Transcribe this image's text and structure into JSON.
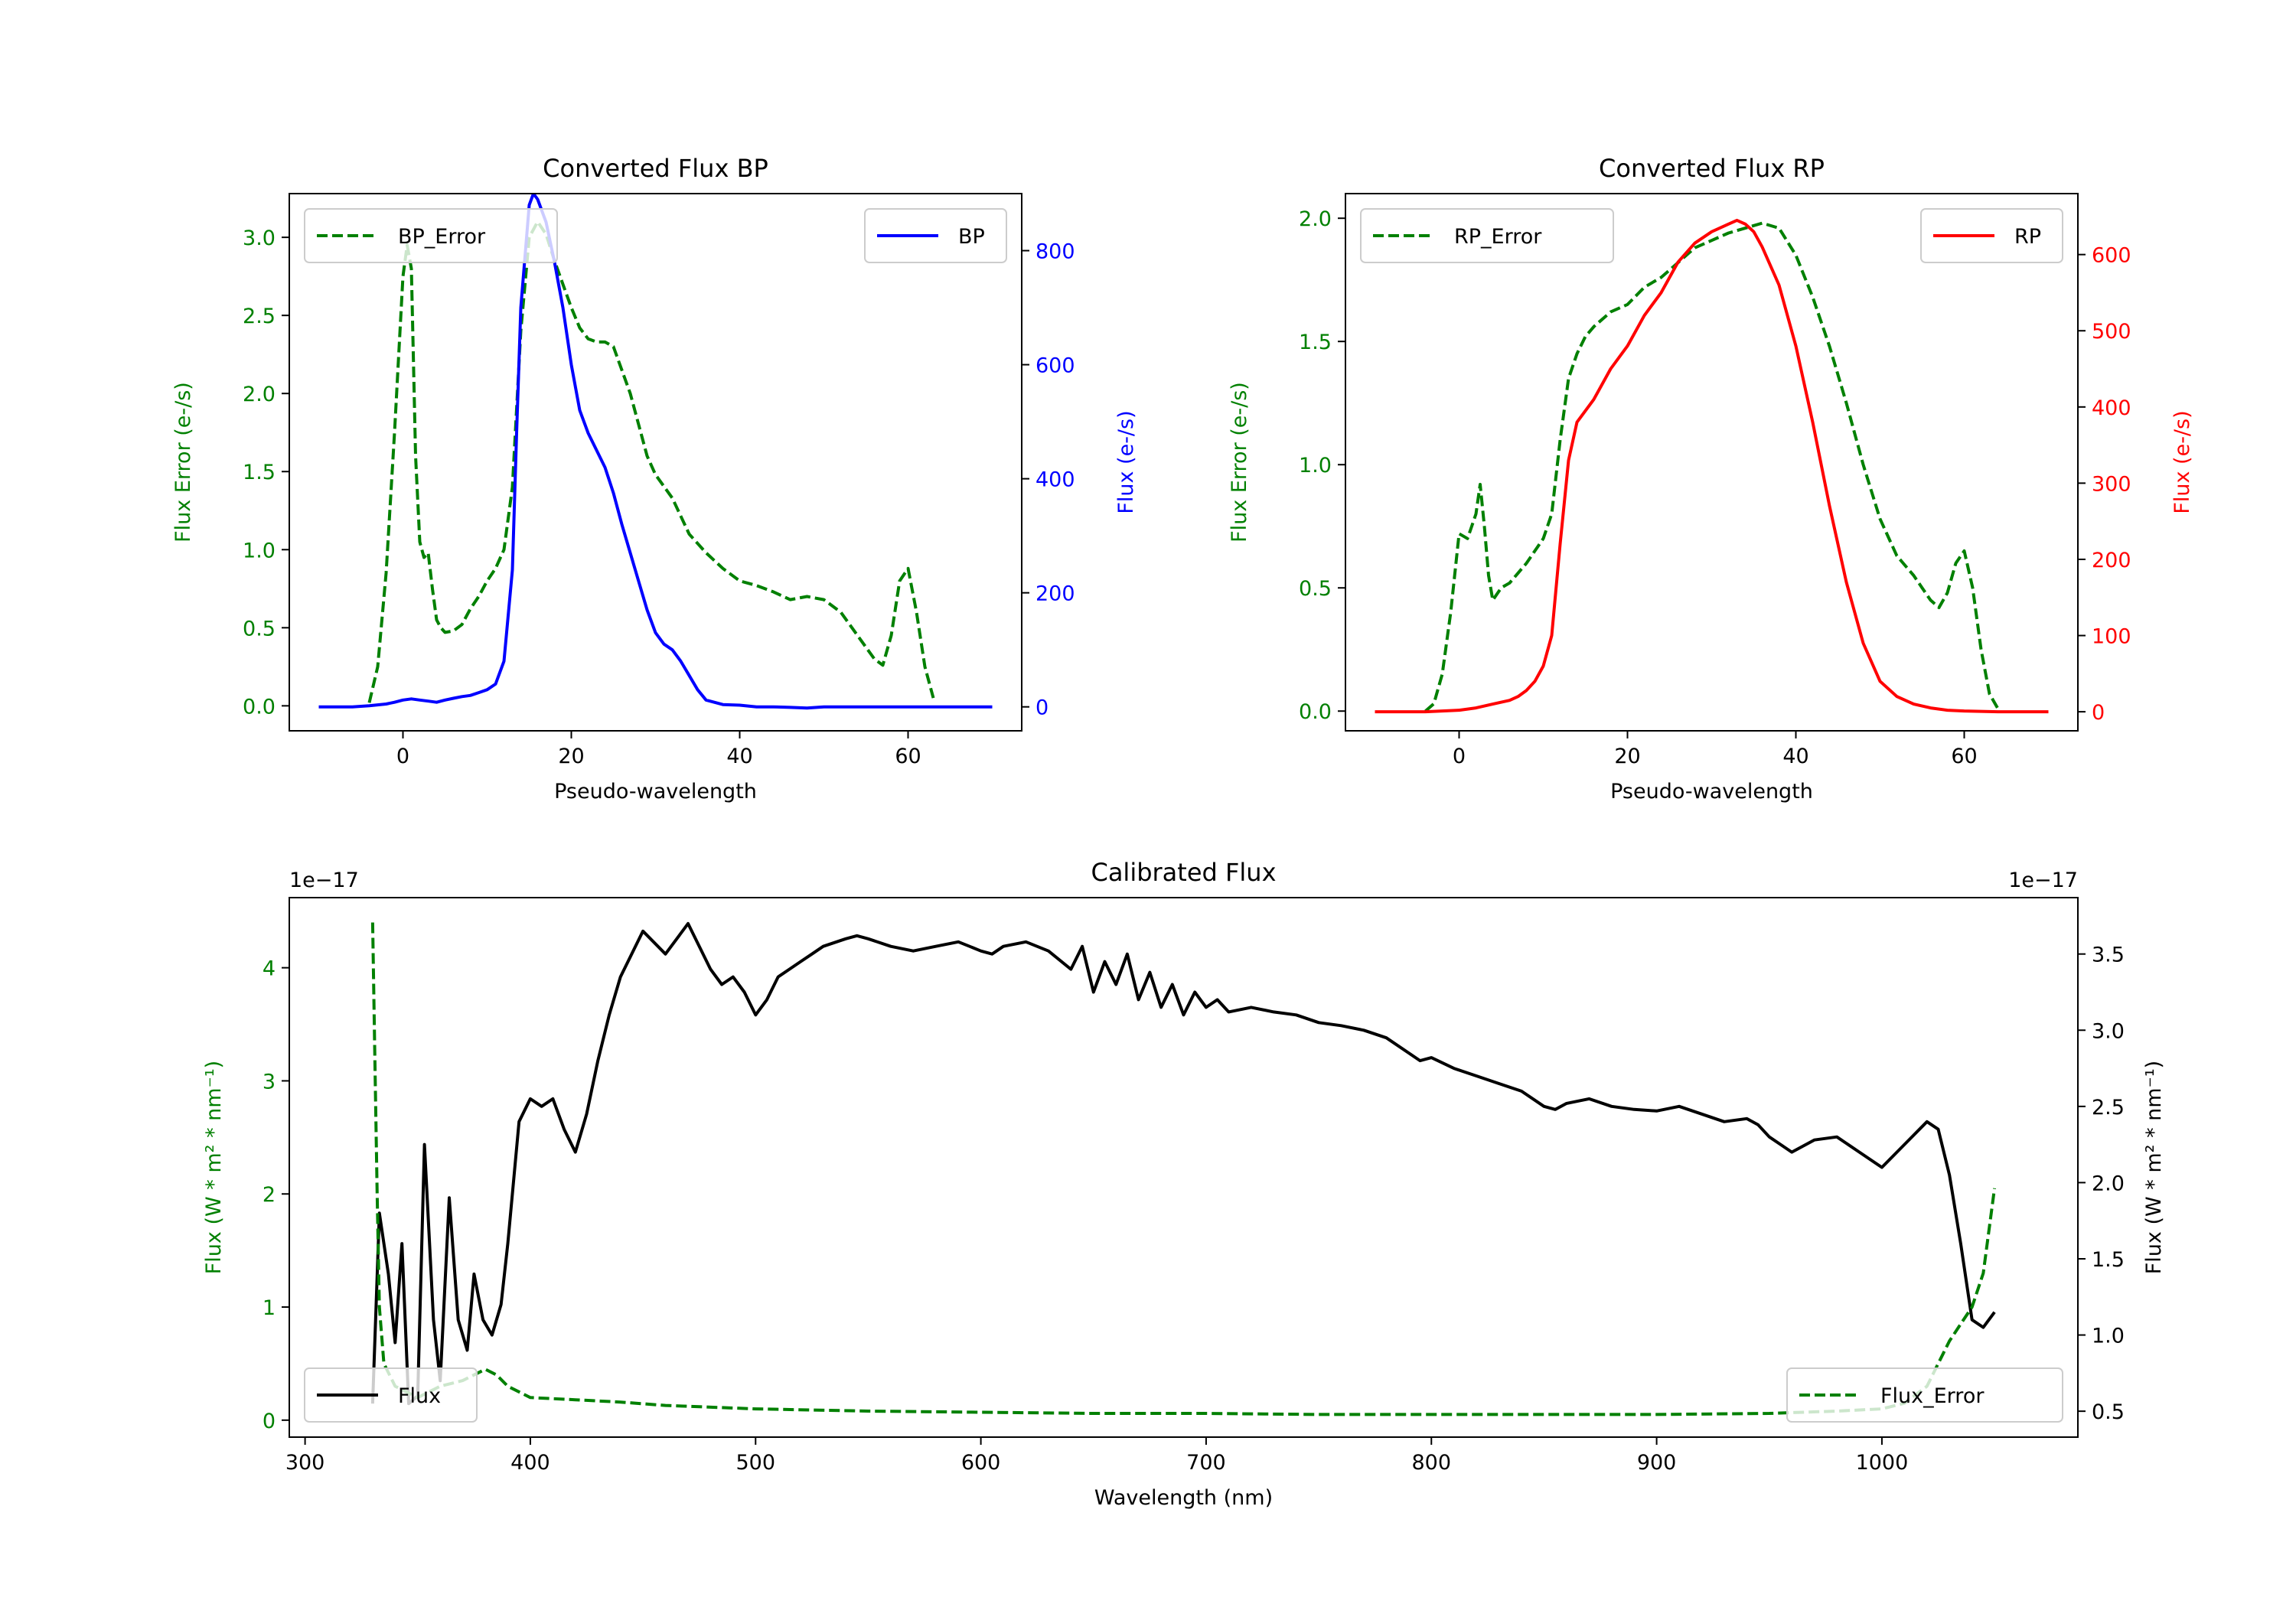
{
  "colors": {
    "green": "#008000",
    "blue": "#0000ff",
    "red": "#ff0000",
    "black": "#000000"
  },
  "chart_data": [
    {
      "id": "bp",
      "type": "line",
      "title": "Converted Flux BP",
      "xlabel": "Pseudo-wavelength",
      "ylabel_left": "Flux Error (e-/s)",
      "ylabel_right": "Flux (e-/s)",
      "xlim": [
        -13.5,
        73.5
      ],
      "ylim_left": [
        -0.16,
        3.28
      ],
      "ylim_right": [
        -42,
        900
      ],
      "xticks": [
        0,
        20,
        40,
        60
      ],
      "xtick_labels": [
        "0",
        "20",
        "40",
        "60"
      ],
      "yticks_left": [
        0.0,
        0.5,
        1.0,
        1.5,
        2.0,
        2.5,
        3.0
      ],
      "ytick_labels_left": [
        "0.0",
        "0.5",
        "1.0",
        "1.5",
        "2.0",
        "2.5",
        "3.0"
      ],
      "yticks_right": [
        0,
        200,
        400,
        600,
        800
      ],
      "ytick_labels_right": [
        "0",
        "200",
        "400",
        "600",
        "800"
      ],
      "legend_left": "BP_Error",
      "legend_right": "BP",
      "series": [
        {
          "name": "BP_Error",
          "axis": "left",
          "color": "green",
          "dashed": true,
          "x": [
            -4,
            -3,
            -2,
            -1,
            0,
            0.5,
            1,
            1.5,
            2,
            2.5,
            3,
            3.5,
            4,
            4.5,
            5,
            6,
            7,
            8,
            9,
            10,
            11,
            12,
            13,
            14,
            15,
            16,
            17,
            18,
            19,
            20,
            21,
            22,
            23,
            24,
            25,
            26,
            27,
            28,
            29,
            30,
            32,
            34,
            36,
            38,
            40,
            42,
            44,
            46,
            48,
            50,
            52,
            54,
            56,
            57,
            58,
            59,
            60,
            61,
            62,
            63
          ],
          "y": [
            0.02,
            0.25,
            0.85,
            1.75,
            2.75,
            2.95,
            2.8,
            1.6,
            1.05,
            0.95,
            0.98,
            0.75,
            0.55,
            0.5,
            0.47,
            0.48,
            0.52,
            0.62,
            0.7,
            0.8,
            0.88,
            1.0,
            1.4,
            2.4,
            3.0,
            3.1,
            3.02,
            2.85,
            2.7,
            2.55,
            2.42,
            2.35,
            2.33,
            2.33,
            2.3,
            2.15,
            2.0,
            1.8,
            1.6,
            1.48,
            1.33,
            1.1,
            0.98,
            0.88,
            0.8,
            0.77,
            0.73,
            0.68,
            0.7,
            0.68,
            0.6,
            0.45,
            0.3,
            0.26,
            0.45,
            0.8,
            0.88,
            0.6,
            0.25,
            0.05
          ]
        },
        {
          "name": "BP",
          "axis": "right",
          "color": "blue",
          "dashed": false,
          "x": [
            -10,
            -6,
            -4,
            -2,
            -1,
            0,
            1,
            2,
            3,
            4,
            5,
            6,
            7,
            8,
            9,
            10,
            11,
            12,
            13,
            13.5,
            14,
            15,
            15.5,
            16,
            17,
            18,
            19,
            20,
            21,
            22,
            23,
            24,
            25,
            26,
            27,
            28,
            29,
            30,
            31,
            32,
            33,
            34,
            35,
            36,
            38,
            40,
            42,
            44,
            46,
            48,
            50,
            52,
            54,
            56,
            58,
            60,
            62,
            64,
            66,
            68,
            70
          ],
          "y": [
            0,
            0,
            2,
            5,
            8,
            12,
            14,
            12,
            10,
            8,
            12,
            15,
            18,
            20,
            25,
            30,
            40,
            80,
            240,
            480,
            700,
            880,
            900,
            890,
            850,
            780,
            700,
            600,
            520,
            480,
            450,
            420,
            375,
            320,
            270,
            220,
            170,
            130,
            110,
            100,
            80,
            55,
            30,
            12,
            4,
            3,
            0,
            0,
            -1,
            -2,
            0,
            0,
            0,
            0,
            0,
            0,
            0,
            0,
            0,
            0,
            0
          ]
        }
      ]
    },
    {
      "id": "rp",
      "type": "line",
      "title": "Converted Flux RP",
      "xlabel": "Pseudo-wavelength",
      "ylabel_left": "Flux Error (e-/s)",
      "ylabel_right": "Flux (e-/s)",
      "xlim": [
        -13.5,
        73.5
      ],
      "ylim_left": [
        -0.08,
        2.1
      ],
      "ylim_right": [
        -25,
        680
      ],
      "xticks": [
        0,
        20,
        40,
        60
      ],
      "xtick_labels": [
        "0",
        "20",
        "40",
        "60"
      ],
      "yticks_left": [
        0.0,
        0.5,
        1.0,
        1.5,
        2.0
      ],
      "ytick_labels_left": [
        "0.0",
        "0.5",
        "1.0",
        "1.5",
        "2.0"
      ],
      "yticks_right": [
        0,
        100,
        200,
        300,
        400,
        500,
        600
      ],
      "ytick_labels_right": [
        "0",
        "100",
        "200",
        "300",
        "400",
        "500",
        "600"
      ],
      "legend_left": "RP_Error",
      "legend_right": "RP",
      "series": [
        {
          "name": "RP_Error",
          "axis": "left",
          "color": "green",
          "dashed": true,
          "x": [
            -4,
            -3,
            -2,
            -1,
            0,
            1,
            2,
            2.5,
            3,
            3.5,
            4,
            5,
            6,
            7,
            8,
            9,
            10,
            11,
            12,
            13,
            14,
            15,
            16,
            18,
            20,
            22,
            24,
            26,
            28,
            30,
            32,
            34,
            36,
            38,
            40,
            42,
            44,
            46,
            48,
            50,
            52,
            54,
            55,
            56,
            57,
            58,
            59,
            60,
            61,
            62,
            63,
            64
          ],
          "y": [
            0.0,
            0.03,
            0.15,
            0.4,
            0.72,
            0.7,
            0.8,
            0.92,
            0.75,
            0.55,
            0.45,
            0.5,
            0.52,
            0.56,
            0.6,
            0.65,
            0.7,
            0.8,
            1.1,
            1.35,
            1.45,
            1.52,
            1.56,
            1.62,
            1.65,
            1.72,
            1.76,
            1.82,
            1.88,
            1.91,
            1.94,
            1.96,
            1.98,
            1.96,
            1.85,
            1.68,
            1.48,
            1.25,
            1.0,
            0.78,
            0.63,
            0.55,
            0.5,
            0.45,
            0.42,
            0.48,
            0.6,
            0.65,
            0.5,
            0.25,
            0.07,
            0.01
          ]
        },
        {
          "name": "RP",
          "axis": "right",
          "color": "red",
          "dashed": false,
          "x": [
            -10,
            -4,
            -2,
            0,
            2,
            4,
            6,
            7,
            8,
            9,
            10,
            11,
            12,
            13,
            14,
            15,
            16,
            18,
            20,
            22,
            24,
            26,
            28,
            30,
            31,
            32,
            33,
            34,
            35,
            36,
            37,
            38,
            39,
            40,
            42,
            44,
            46,
            48,
            50,
            52,
            54,
            56,
            58,
            60,
            64,
            70
          ],
          "y": [
            0,
            0,
            1,
            2,
            5,
            10,
            15,
            20,
            28,
            40,
            60,
            100,
            220,
            330,
            380,
            395,
            410,
            450,
            480,
            520,
            550,
            590,
            615,
            630,
            635,
            640,
            645,
            640,
            630,
            610,
            585,
            560,
            520,
            480,
            380,
            270,
            170,
            90,
            40,
            20,
            10,
            5,
            2,
            1,
            0,
            0
          ]
        }
      ]
    },
    {
      "id": "cal",
      "type": "line",
      "title": "Calibrated Flux",
      "xlabel": "Wavelength (nm)",
      "ylabel_left": "Flux (W * m² * nm⁻¹)",
      "ylabel_right": "Flux (W * m² * nm⁻¹)",
      "offset_left": "1e−17",
      "offset_right": "1e−17",
      "xlim": [
        293,
        1087
      ],
      "ylim_left": [
        -0.15,
        4.62
      ],
      "ylim_right": [
        0.33,
        3.87
      ],
      "xticks": [
        300,
        400,
        500,
        600,
        700,
        800,
        900,
        1000
      ],
      "xtick_labels": [
        "300",
        "400",
        "500",
        "600",
        "700",
        "800",
        "900",
        "1000"
      ],
      "yticks_left": [
        0,
        1,
        2,
        3,
        4
      ],
      "ytick_labels_left": [
        "0",
        "1",
        "2",
        "3",
        "4"
      ],
      "yticks_right": [
        0.5,
        1.0,
        1.5,
        2.0,
        2.5,
        3.0,
        3.5
      ],
      "ytick_labels_right": [
        "0.5",
        "1.0",
        "1.5",
        "2.0",
        "2.5",
        "3.0",
        "3.5"
      ],
      "legend_left": "Flux",
      "legend_right": "Flux_Error",
      "series": [
        {
          "name": "Flux",
          "axis": "right",
          "color": "black",
          "dashed": false,
          "x": [
            330,
            333,
            337,
            340,
            343,
            346,
            350,
            353,
            357,
            360,
            364,
            368,
            372,
            375,
            379,
            383,
            387,
            390,
            395,
            400,
            405,
            410,
            415,
            420,
            425,
            430,
            435,
            440,
            450,
            460,
            465,
            470,
            475,
            480,
            485,
            490,
            495,
            500,
            505,
            510,
            515,
            520,
            525,
            530,
            540,
            545,
            550,
            560,
            570,
            580,
            590,
            595,
            600,
            605,
            610,
            620,
            630,
            640,
            645,
            650,
            655,
            660,
            665,
            670,
            675,
            680,
            685,
            690,
            695,
            700,
            705,
            710,
            720,
            730,
            740,
            750,
            760,
            770,
            780,
            790,
            795,
            800,
            810,
            820,
            830,
            840,
            850,
            855,
            860,
            870,
            880,
            890,
            900,
            910,
            920,
            930,
            940,
            945,
            950,
            955,
            960,
            970,
            980,
            990,
            1000,
            1010,
            1020,
            1025,
            1030,
            1035,
            1040,
            1045,
            1050
          ],
          "y": [
            0.55,
            1.8,
            1.4,
            0.95,
            1.6,
            0.55,
            0.6,
            2.25,
            1.1,
            0.7,
            1.9,
            1.1,
            0.9,
            1.4,
            1.1,
            1.0,
            1.2,
            1.6,
            2.4,
            2.55,
            2.5,
            2.55,
            2.35,
            2.2,
            2.45,
            2.8,
            3.1,
            3.35,
            3.65,
            3.5,
            3.6,
            3.7,
            3.55,
            3.4,
            3.3,
            3.35,
            3.25,
            3.1,
            3.2,
            3.35,
            3.4,
            3.45,
            3.5,
            3.55,
            3.6,
            3.62,
            3.6,
            3.55,
            3.52,
            3.55,
            3.58,
            3.55,
            3.52,
            3.5,
            3.55,
            3.58,
            3.52,
            3.4,
            3.55,
            3.25,
            3.45,
            3.3,
            3.5,
            3.2,
            3.38,
            3.15,
            3.3,
            3.1,
            3.25,
            3.15,
            3.2,
            3.12,
            3.15,
            3.12,
            3.1,
            3.05,
            3.03,
            3.0,
            2.95,
            2.85,
            2.8,
            2.82,
            2.75,
            2.7,
            2.65,
            2.6,
            2.5,
            2.48,
            2.52,
            2.55,
            2.5,
            2.48,
            2.47,
            2.5,
            2.45,
            2.4,
            2.42,
            2.38,
            2.3,
            2.25,
            2.2,
            2.28,
            2.3,
            2.2,
            2.1,
            2.25,
            2.4,
            2.35,
            2.05,
            1.6,
            1.1,
            1.05,
            1.15
          ]
        },
        {
          "name": "Flux_Error",
          "axis": "left",
          "color": "green",
          "dashed": true,
          "x": [
            330,
            331,
            332,
            333,
            335,
            340,
            345,
            350,
            360,
            370,
            375,
            380,
            385,
            390,
            400,
            420,
            440,
            460,
            500,
            550,
            600,
            650,
            700,
            750,
            800,
            850,
            900,
            950,
            980,
            1000,
            1010,
            1020,
            1025,
            1030,
            1035,
            1040,
            1045,
            1050
          ],
          "y": [
            4.4,
            3.2,
            2.0,
            1.0,
            0.5,
            0.3,
            0.25,
            0.2,
            0.3,
            0.35,
            0.4,
            0.45,
            0.4,
            0.3,
            0.2,
            0.18,
            0.16,
            0.13,
            0.1,
            0.08,
            0.07,
            0.06,
            0.06,
            0.05,
            0.05,
            0.05,
            0.05,
            0.06,
            0.08,
            0.1,
            0.15,
            0.3,
            0.5,
            0.7,
            0.85,
            1.0,
            1.3,
            2.05
          ]
        }
      ]
    }
  ]
}
